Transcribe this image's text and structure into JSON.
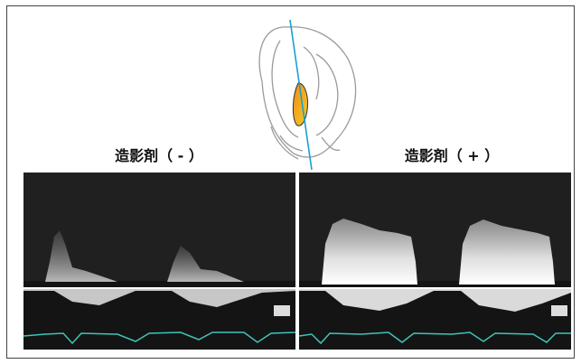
{
  "labels": {
    "left": "造影剤（ - ）",
    "right": "造影剤（ + ）"
  }
}
